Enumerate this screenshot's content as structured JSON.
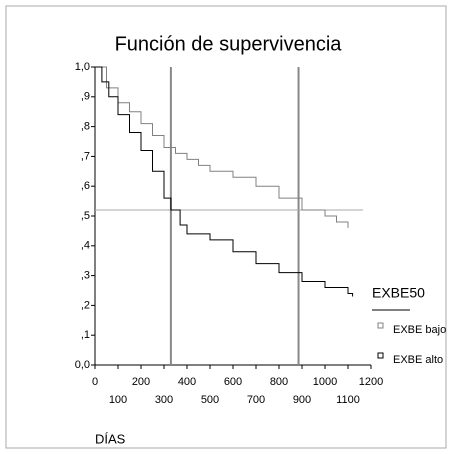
{
  "chart_data": {
    "type": "step",
    "title": "Función de supervivencia",
    "x_label": "DÍAS",
    "xlim": [
      0,
      1200
    ],
    "ylim": [
      0,
      1.0
    ],
    "xticks": [
      0,
      100,
      200,
      300,
      400,
      500,
      600,
      700,
      800,
      900,
      1000,
      1100,
      1200
    ],
    "yticks": [
      {
        "value": 0,
        "label": "0,0"
      },
      {
        "value": 0.1,
        "label": ",1"
      },
      {
        "value": 0.2,
        "label": ",2"
      },
      {
        "value": 0.3,
        "label": ",3"
      },
      {
        "value": 0.4,
        "label": ",4"
      },
      {
        "value": 0.5,
        "label": ",5"
      },
      {
        "value": 0.6,
        "label": ",6"
      },
      {
        "value": 0.7,
        "label": ",7"
      },
      {
        "value": 0.8,
        "label": ",8"
      },
      {
        "value": 0.9,
        "label": ",9"
      },
      {
        "value": 1.0,
        "label": "1,0"
      }
    ],
    "reference_x": [
      330,
      885
    ],
    "reference_y": [
      0.52
    ],
    "legend_title": "EXBE50",
    "series": [
      {
        "name": "EXBE bajo",
        "color": "#808080",
        "x": [
          0,
          50,
          100,
          150,
          200,
          250,
          300,
          350,
          400,
          450,
          500,
          600,
          700,
          800,
          900,
          1000,
          1050,
          1100
        ],
        "values": [
          1.0,
          0.93,
          0.88,
          0.85,
          0.81,
          0.77,
          0.73,
          0.71,
          0.69,
          0.67,
          0.65,
          0.63,
          0.6,
          0.56,
          0.52,
          0.5,
          0.48,
          0.46
        ]
      },
      {
        "name": "EXBE alto",
        "color": "#000000",
        "x": [
          0,
          30,
          60,
          100,
          150,
          200,
          250,
          300,
          330,
          370,
          400,
          500,
          600,
          700,
          800,
          900,
          1000,
          1100,
          1120
        ],
        "values": [
          1.0,
          0.95,
          0.9,
          0.84,
          0.78,
          0.72,
          0.65,
          0.56,
          0.52,
          0.47,
          0.44,
          0.42,
          0.38,
          0.34,
          0.31,
          0.28,
          0.26,
          0.24,
          0.23
        ]
      }
    ]
  }
}
